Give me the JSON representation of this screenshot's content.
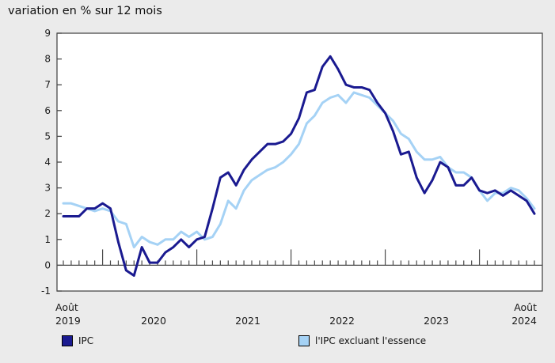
{
  "chart_data": {
    "type": "line",
    "title": "variation en % sur 12 mois",
    "x_unit": "month",
    "x_range": [
      "Août 2019",
      "Août 2024"
    ],
    "n_points": 61,
    "ylim": [
      -1,
      9
    ],
    "ytick_interval": 1,
    "grid": "off",
    "zero_axis_ticks": "monthly, long ticks at January",
    "year_tick_month_indices": [
      5,
      17,
      29,
      41,
      53
    ],
    "x_axis_labels": [
      {
        "text_top": "Août",
        "text_bottom": "2019",
        "month_index": 0,
        "align": "start"
      },
      {
        "text_top": "",
        "text_bottom": "2020",
        "month_index": 11.5,
        "align": "middle"
      },
      {
        "text_top": "",
        "text_bottom": "2021",
        "month_index": 23.5,
        "align": "middle"
      },
      {
        "text_top": "",
        "text_bottom": "2022",
        "month_index": 35.5,
        "align": "middle"
      },
      {
        "text_top": "",
        "text_bottom": "2023",
        "month_index": 47.5,
        "align": "middle"
      },
      {
        "text_top": "Août",
        "text_bottom": "2024",
        "month_index": 60,
        "align": "end"
      }
    ],
    "series": [
      {
        "name": "IPC",
        "color": "#1a1a90",
        "values": [
          1.9,
          1.9,
          1.9,
          2.2,
          2.2,
          2.4,
          2.2,
          0.9,
          -0.2,
          -0.4,
          0.7,
          0.1,
          0.1,
          0.5,
          0.7,
          1.0,
          0.7,
          1.0,
          1.1,
          2.2,
          3.4,
          3.6,
          3.1,
          3.7,
          4.1,
          4.4,
          4.7,
          4.7,
          4.8,
          5.1,
          5.7,
          6.7,
          6.8,
          7.7,
          8.1,
          7.6,
          7.0,
          6.9,
          6.9,
          6.8,
          6.3,
          5.9,
          5.2,
          4.3,
          4.4,
          3.4,
          2.8,
          3.3,
          4.0,
          3.8,
          3.1,
          3.1,
          3.4,
          2.9,
          2.8,
          2.9,
          2.7,
          2.9,
          2.7,
          2.5,
          2.0
        ]
      },
      {
        "name": "l'IPC excluant l'essence",
        "color": "#a5d2f5",
        "values": [
          2.4,
          2.4,
          2.3,
          2.2,
          2.1,
          2.2,
          2.1,
          1.7,
          1.6,
          0.7,
          1.1,
          0.9,
          0.8,
          1.0,
          1.0,
          1.3,
          1.1,
          1.3,
          1.0,
          1.1,
          1.6,
          2.5,
          2.2,
          2.9,
          3.3,
          3.5,
          3.7,
          3.8,
          4.0,
          4.3,
          4.7,
          5.5,
          5.8,
          6.3,
          6.5,
          6.6,
          6.3,
          6.7,
          6.6,
          6.5,
          6.2,
          5.9,
          5.6,
          5.1,
          4.9,
          4.4,
          4.1,
          4.1,
          4.2,
          3.8,
          3.6,
          3.6,
          3.4,
          2.9,
          2.5,
          2.8,
          2.8,
          3.0,
          2.9,
          2.6,
          2.2
        ]
      }
    ],
    "legend_position": "bottom"
  },
  "colors": {
    "background": "#ebebeb",
    "plot_background": "#ffffff",
    "axis": "#4a4a4a",
    "text": "#1a1a1a"
  }
}
